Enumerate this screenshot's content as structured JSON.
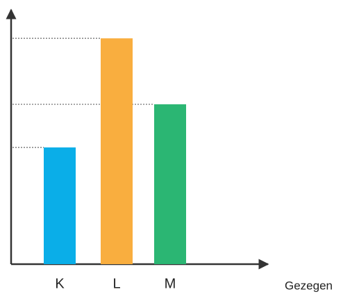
{
  "chart_data": {
    "type": "bar",
    "categories": [
      "K",
      "L",
      "M"
    ],
    "values": [
      46,
      89,
      63
    ],
    "colors": [
      "#0aaee8",
      "#f9ae3f",
      "#2bb673"
    ],
    "x_label": "Gezegen",
    "ylim": [
      0,
      100
    ],
    "guide_lines": true
  }
}
